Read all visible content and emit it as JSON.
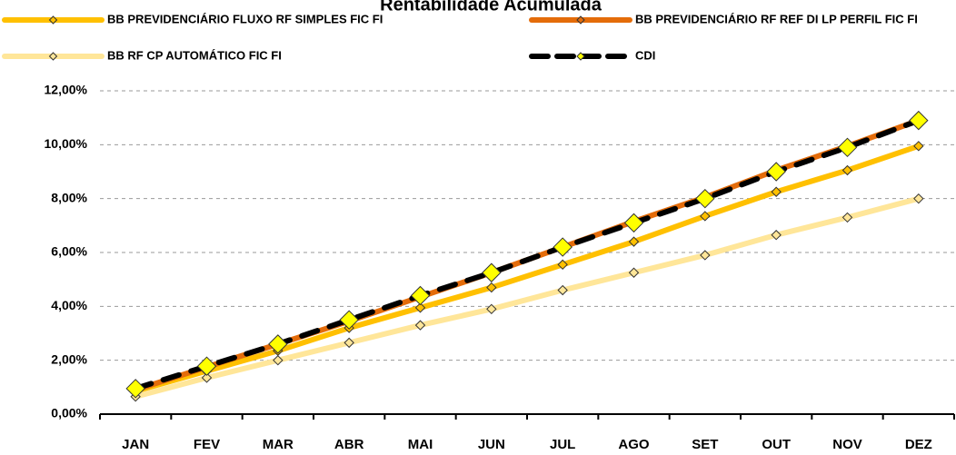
{
  "chart_data": {
    "type": "line",
    "title": "Rentabilidade Acumulada",
    "categories": [
      "JAN",
      "FEV",
      "MAR",
      "ABR",
      "MAI",
      "JUN",
      "JUL",
      "AGO",
      "SET",
      "OUT",
      "NOV",
      "DEZ"
    ],
    "series": [
      {
        "name": "BB PREVIDENCIÁRIO FLUXO RF SIMPLES FIC FI",
        "color": "#FFC000",
        "marker_color": "#FFC000",
        "line_style": "solid",
        "values": [
          0.85,
          1.6,
          2.35,
          3.2,
          3.95,
          4.7,
          5.55,
          6.4,
          7.35,
          8.25,
          9.05,
          9.95
        ]
      },
      {
        "name": "BB PREVIDENCIÁRIO RF REF DI LP PERFIL FIC FI",
        "color": "#E46C0A",
        "marker_color": "#E46C0A",
        "line_style": "solid",
        "values": [
          0.9,
          1.75,
          2.6,
          3.45,
          4.35,
          5.25,
          6.2,
          7.15,
          8.05,
          9.05,
          9.95,
          10.9
        ]
      },
      {
        "name": "BB RF CP AUTOMÁTICO FIC FI",
        "color": "#FFE699",
        "marker_color": "#FFE699",
        "line_style": "solid",
        "values": [
          0.65,
          1.35,
          2.0,
          2.65,
          3.3,
          3.9,
          4.6,
          5.25,
          5.9,
          6.65,
          7.3,
          8.0
        ]
      },
      {
        "name": "CDI",
        "color": "#000000",
        "marker_color": "#FFFF00",
        "line_style": "dashed",
        "values": [
          0.95,
          1.78,
          2.6,
          3.5,
          4.4,
          5.25,
          6.2,
          7.1,
          8.0,
          9.0,
          9.9,
          10.9
        ]
      }
    ],
    "ylim": [
      0,
      12
    ],
    "yticks": [
      {
        "value": 0,
        "label": "0,00%"
      },
      {
        "value": 2,
        "label": "2,00%"
      },
      {
        "value": 4,
        "label": "4,00%"
      },
      {
        "value": 6,
        "label": "6,00%"
      },
      {
        "value": 8,
        "label": "8,00%"
      },
      {
        "value": 10,
        "label": "10,00%"
      },
      {
        "value": 12,
        "label": "12,00%"
      }
    ],
    "grid": true
  }
}
